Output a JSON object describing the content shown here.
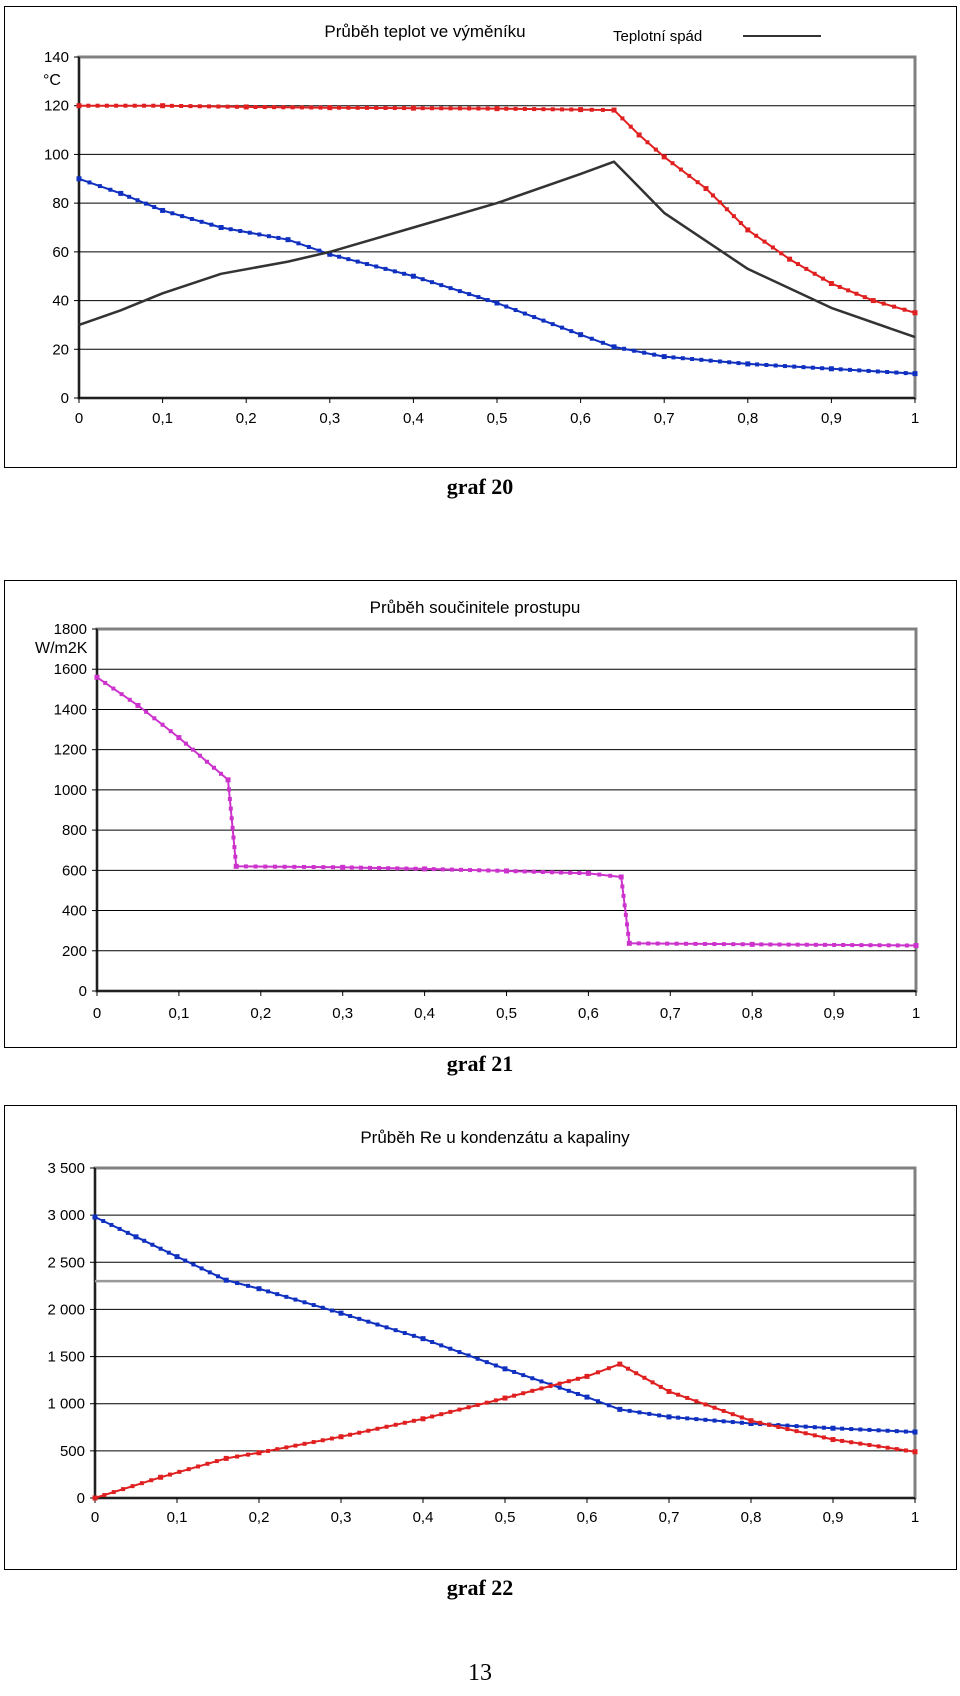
{
  "page_number": "13",
  "chart_data": [
    {
      "id": "graf20",
      "caption": "graf 20",
      "type": "line",
      "title": "Průběh teplot ve výměníku",
      "unit_label": "°C",
      "legend": {
        "label": "Teplotní spád",
        "color": "#333333",
        "position": "top-right"
      },
      "xlim": [
        0,
        1
      ],
      "ylim": [
        0,
        140
      ],
      "xticks": [
        "0",
        "0,1",
        "0,2",
        "0,3",
        "0,4",
        "0,5",
        "0,6",
        "0,7",
        "0,8",
        "0,9",
        "1"
      ],
      "yticks": [
        "0",
        "20",
        "40",
        "60",
        "80",
        "100",
        "120",
        "140"
      ],
      "grid": true,
      "series": [
        {
          "color": "#e02020",
          "markers": true,
          "x": [
            0,
            0.1,
            0.2,
            0.3,
            0.4,
            0.5,
            0.6,
            0.64,
            0.67,
            0.7,
            0.75,
            0.8,
            0.85,
            0.9,
            0.95,
            1.0
          ],
          "y": [
            120,
            120,
            119.5,
            119.2,
            119,
            118.8,
            118.4,
            118.2,
            108,
            99,
            86,
            69,
            57,
            47,
            40,
            35
          ]
        },
        {
          "color": "#1030c0",
          "markers": true,
          "x": [
            0,
            0.05,
            0.1,
            0.17,
            0.25,
            0.3,
            0.4,
            0.5,
            0.6,
            0.64,
            0.7,
            0.8,
            0.9,
            1.0
          ],
          "y": [
            90,
            84,
            77,
            70,
            65,
            59,
            50,
            39,
            26,
            21,
            17,
            14,
            12,
            10
          ]
        },
        {
          "name": "Teplotní spád",
          "color": "#333333",
          "markers": false,
          "x": [
            0,
            0.05,
            0.1,
            0.17,
            0.25,
            0.3,
            0.4,
            0.5,
            0.6,
            0.64,
            0.66,
            0.7,
            0.8,
            0.9,
            1.0
          ],
          "y": [
            30,
            36,
            43,
            51,
            56,
            60,
            70,
            80,
            92,
            97,
            90,
            76,
            53,
            37,
            25
          ]
        }
      ]
    },
    {
      "id": "graf21",
      "caption": "graf 21",
      "type": "line",
      "title": "Průběh součinitele prostupu",
      "unit_label": "W/m2K",
      "xlim": [
        0,
        1
      ],
      "ylim": [
        0,
        1800
      ],
      "xticks": [
        "0",
        "0,1",
        "0,2",
        "0,3",
        "0,4",
        "0,5",
        "0,6",
        "0,7",
        "0,8",
        "0,9",
        "1"
      ],
      "yticks": [
        "0",
        "200",
        "400",
        "600",
        "800",
        "1000",
        "1200",
        "1400",
        "1600",
        "1800"
      ],
      "grid": true,
      "series": [
        {
          "color": "#cc33cc",
          "markers": true,
          "x": [
            0,
            0.05,
            0.1,
            0.16,
            0.17,
            0.3,
            0.4,
            0.5,
            0.6,
            0.64,
            0.65,
            0.8,
            1.0
          ],
          "y": [
            1560,
            1420,
            1260,
            1050,
            620,
            615,
            607,
            597,
            585,
            567,
            237,
            232,
            226
          ]
        }
      ]
    },
    {
      "id": "graf22",
      "caption": "graf 22",
      "type": "line",
      "title": "Průběh Re u kondenzátu a kapaliny",
      "xlim": [
        0,
        1
      ],
      "ylim": [
        0,
        3500
      ],
      "xticks": [
        "0",
        "0,1",
        "0,2",
        "0,3",
        "0,4",
        "0,5",
        "0,6",
        "0,7",
        "0,8",
        "0,9",
        "1"
      ],
      "yticks": [
        "0",
        "500",
        "1 000",
        "1 500",
        "2 000",
        "2 500",
        "3 000",
        "3 500"
      ],
      "grid": true,
      "reference_line": {
        "y": 2300,
        "color": "#999999"
      },
      "series": [
        {
          "color": "#1030c0",
          "markers": true,
          "x": [
            0,
            0.05,
            0.1,
            0.16,
            0.2,
            0.3,
            0.4,
            0.5,
            0.6,
            0.64,
            0.7,
            0.8,
            0.9,
            1.0
          ],
          "y": [
            2980,
            2770,
            2560,
            2310,
            2220,
            1960,
            1690,
            1370,
            1070,
            940,
            860,
            790,
            740,
            700
          ]
        },
        {
          "color": "#e02020",
          "markers": true,
          "x": [
            0,
            0.08,
            0.16,
            0.2,
            0.3,
            0.4,
            0.5,
            0.6,
            0.64,
            0.7,
            0.8,
            0.9,
            1.0
          ],
          "y": [
            0,
            220,
            420,
            480,
            650,
            840,
            1060,
            1290,
            1420,
            1130,
            820,
            620,
            490
          ]
        }
      ]
    }
  ]
}
